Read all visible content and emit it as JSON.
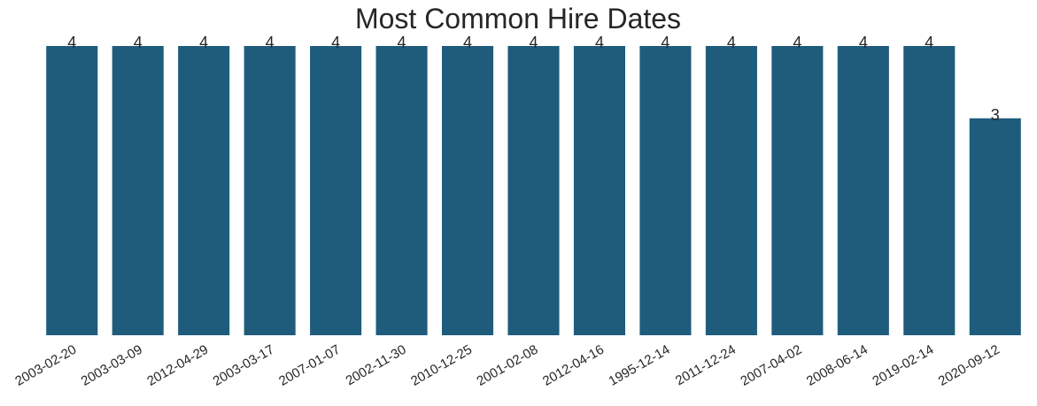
{
  "chart_data": {
    "type": "bar",
    "title": "Most Common Hire Dates",
    "xlabel": "",
    "ylabel": "",
    "categories": [
      "2003-02-20",
      "2003-03-09",
      "2012-04-29",
      "2003-03-17",
      "2007-01-07",
      "2002-11-30",
      "2010-12-25",
      "2001-02-08",
      "2012-04-16",
      "1995-12-14",
      "2011-12-24",
      "2007-04-02",
      "2008-06-14",
      "2019-02-14",
      "2020-09-12"
    ],
    "values": [
      4,
      4,
      4,
      4,
      4,
      4,
      4,
      4,
      4,
      4,
      4,
      4,
      4,
      4,
      3
    ],
    "ylim": [
      0,
      4
    ],
    "grid": false,
    "bar_color": "#1f5c7c",
    "text_color": "#262626"
  }
}
